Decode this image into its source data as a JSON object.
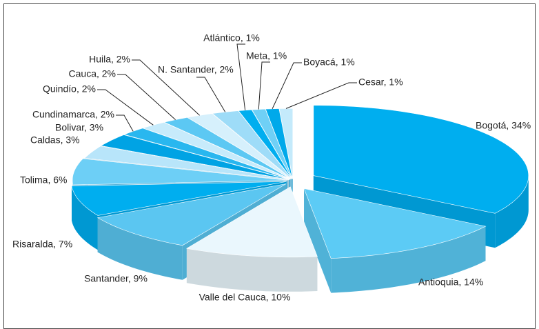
{
  "chart_data": {
    "type": "pie3d",
    "labels": [
      "Bogotá, 34%",
      "Antioquia, 14%",
      "Valle del Cauca, 10%",
      "Santander, 9%",
      "Risaralda, 7%",
      "Tolima, 6%",
      "Caldas, 3%",
      "Bolivar, 3%",
      "Cundinamarca, 2%",
      "Quindío, 2%",
      "Cauca, 2%",
      "Huila, 2%",
      "N. Santander, 2%",
      "Atlántico, 1%",
      "Meta, 1%",
      "Boyacá, 1%",
      "Cesar, 1%"
    ],
    "values": [
      34,
      14,
      10,
      9,
      7,
      6,
      3,
      3,
      2,
      2,
      2,
      2,
      2,
      1,
      1,
      1,
      1
    ],
    "colors": [
      "#00aeef",
      "#5ccbf5",
      "#eaf7fd",
      "#5bc6f1",
      "#00aeef",
      "#6dcff6",
      "#b8e5fa",
      "#00a3e4",
      "#29b7ef",
      "#c7ebfb",
      "#5cc8f3",
      "#d6f0fc",
      "#9edcf8",
      "#00aeef",
      "#6fd0f6",
      "#00a9ea",
      "#c4eafb"
    ]
  }
}
